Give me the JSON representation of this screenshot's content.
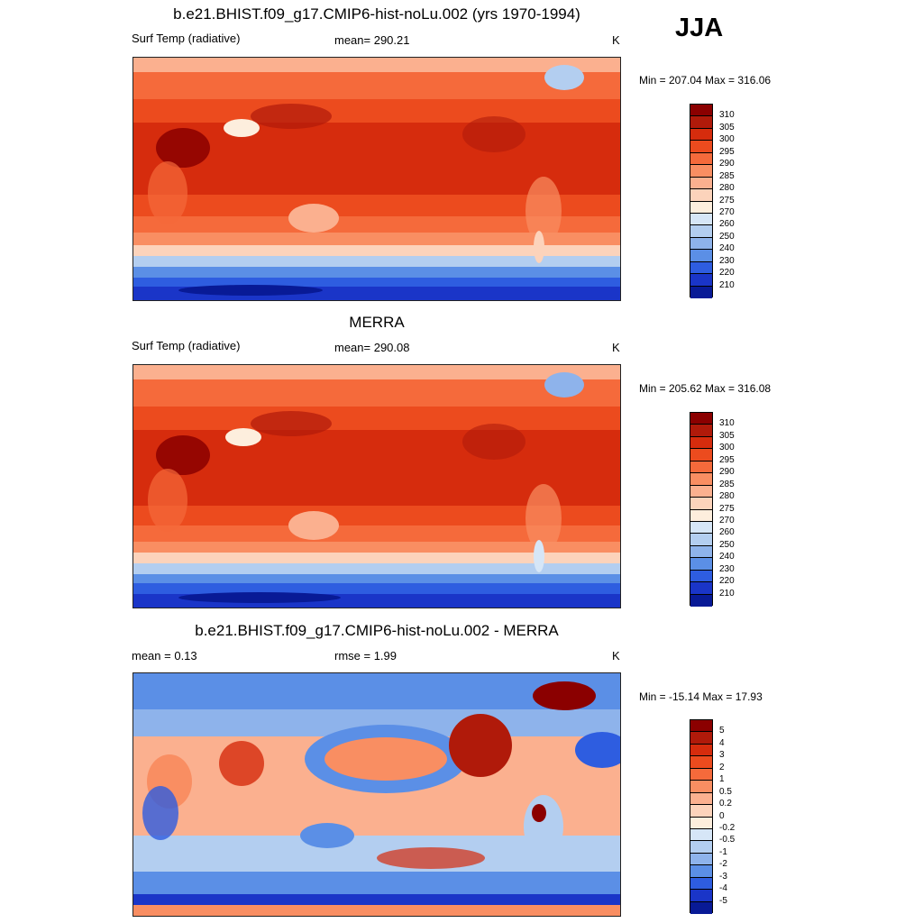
{
  "season": "JJA",
  "panels": [
    {
      "title": "b.e21.BHIST.f09_g17.CMIP6-hist-noLu.002 (yrs 1970-1994)",
      "left_label": "Surf Temp (radiative)",
      "center_label": "mean= 290.21",
      "units": "K",
      "minmax": "Min = 207.04 Max = 316.06"
    },
    {
      "title": "MERRA",
      "left_label": "Surf Temp (radiative)",
      "center_label": "mean= 290.08",
      "units": "K",
      "minmax": "Min = 205.62 Max = 316.08"
    },
    {
      "title": "b.e21.BHIST.f09_g17.CMIP6-hist-noLu.002 - MERRA",
      "left_label": "mean =   0.13",
      "center_label": "rmse =   1.99",
      "units": "K",
      "minmax": "Min = -15.14 Max =  17.93"
    }
  ],
  "colorbars": {
    "absolute": {
      "levels": [
        "310",
        "305",
        "300",
        "295",
        "290",
        "285",
        "280",
        "275",
        "270",
        "260",
        "250",
        "240",
        "230",
        "220",
        "210"
      ],
      "colors": [
        "#8b0000",
        "#b01a0a",
        "#d62c0d",
        "#ec4b1e",
        "#f56a3b",
        "#f98e62",
        "#fbb08f",
        "#fcd3bb",
        "#fdeedd",
        "#d6e6f7",
        "#b3cef0",
        "#8eb3eb",
        "#5b8fe6",
        "#2e5de0",
        "#1a35c8",
        "#081a96"
      ]
    },
    "difference": {
      "levels": [
        "5",
        "4",
        "3",
        "2",
        "1",
        "0.5",
        "0.2",
        "0",
        "-0.2",
        "-0.5",
        "-1",
        "-2",
        "-3",
        "-4",
        "-5"
      ],
      "colors": [
        "#8b0000",
        "#b01a0a",
        "#d62c0d",
        "#ec4b1e",
        "#f56a3b",
        "#f98e62",
        "#fbb08f",
        "#fcd3bb",
        "#fdeedd",
        "#d6e6f7",
        "#b3cef0",
        "#8eb3eb",
        "#5b8fe6",
        "#2e5de0",
        "#1a35c8",
        "#081a96"
      ]
    }
  }
}
